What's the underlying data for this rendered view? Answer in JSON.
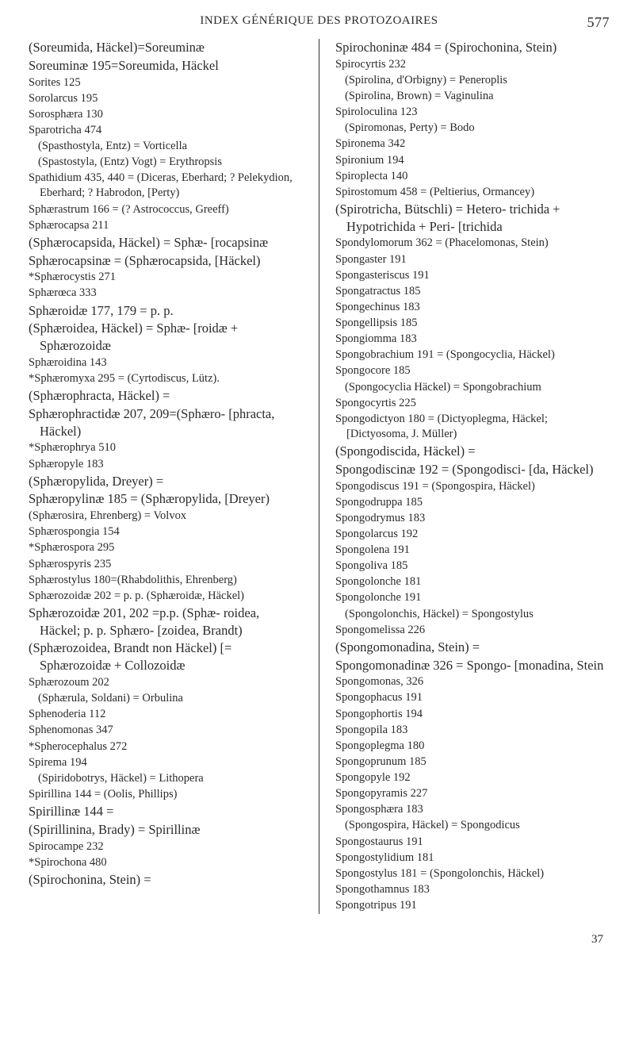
{
  "header": {
    "title": "INDEX GÉNÉRIQUE DES PROTOZOAIRES",
    "page_top": "577",
    "page_bottom": "37"
  },
  "col1": [
    {
      "t": "(Soreumida, Häckel)=Soreuminæ",
      "cls": "big"
    },
    {
      "t": "Soreuminæ 195=Soreumida, Häckel",
      "cls": "big"
    },
    {
      "t": "Sorites 125"
    },
    {
      "t": "Sorolarcus 195"
    },
    {
      "t": "Sorosphæra 130"
    },
    {
      "t": "Sparotricha 474"
    },
    {
      "t": "(Spasthostyla, Entz) = Vorticella",
      "cls": "sub"
    },
    {
      "t": "(Spastostyla, (Entz) Vogt) = Erythropsis",
      "cls": "sub"
    },
    {
      "t": "Spathidium 435, 440 = (Diceras, Eberhard; ? Pelekydion, Eberhard; ? Habrodon, [Perty)"
    },
    {
      "t": "Sphærastrum 166 = (? Astrococcus, Greeff)"
    },
    {
      "t": "Sphærocapsa 211"
    },
    {
      "t": "(Sphærocapsida, Häckel) = Sphæ- [rocapsinæ",
      "cls": "big"
    },
    {
      "t": "Sphærocapsinæ = (Sphærocapsida, [Häckel)",
      "cls": "big"
    },
    {
      "t": "*Sphærocystis 271"
    },
    {
      "t": "Sphærœca 333"
    },
    {
      "t": "Sphæroidæ 177, 179 = p. p.",
      "cls": "big"
    },
    {
      "t": "(Sphæroidea, Häckel) = Sphæ- [roidæ + Sphærozoidæ",
      "cls": "big"
    },
    {
      "t": "Sphæroidina 143"
    },
    {
      "t": "*Sphæromyxa 295 = (Cyrtodiscus, Lütz)."
    },
    {
      "t": "(Sphærophracta, Häckel) =",
      "cls": "big"
    },
    {
      "t": "Sphærophractidæ 207, 209=(Sphæro- [phracta, Häckel)",
      "cls": "big"
    },
    {
      "t": "*Sphærophrya 510"
    },
    {
      "t": "Sphæropyle 183"
    },
    {
      "t": "(Sphæropylida, Dreyer) =",
      "cls": "big"
    },
    {
      "t": "Sphæropylinæ 185 = (Sphæropylida, [Dreyer)",
      "cls": "big"
    },
    {
      "t": "(Sphærosira, Ehrenberg) = Volvox"
    },
    {
      "t": "Sphærospongia 154"
    },
    {
      "t": "*Sphærospora 295"
    },
    {
      "t": "Sphærospyris 235"
    },
    {
      "t": "Sphærostylus 180=(Rhabdolithis, Ehrenberg)"
    },
    {
      "t": "Sphærozoidæ 202 = p. p. (Sphæroidæ, Häckel)"
    },
    {
      "t": "Sphærozoidæ 201, 202 =p.p. (Sphæ- roidea, Häckel; p. p. Sphæro- [zoidea, Brandt)",
      "cls": "big"
    },
    {
      "t": "(Sphærozoidea, Brandt non Häckel) [= Sphærozoidæ + Collozoidæ",
      "cls": "big"
    },
    {
      "t": "Sphærozoum 202"
    },
    {
      "t": "(Sphærula, Soldani) = Orbulina",
      "cls": "sub"
    },
    {
      "t": "Sphenoderia 112"
    },
    {
      "t": "Sphenomonas 347"
    },
    {
      "t": "*Spherocephalus 272"
    },
    {
      "t": "Spirema 194"
    },
    {
      "t": "(Spiridobotrys, Häckel) = Lithopera",
      "cls": "sub"
    },
    {
      "t": "Spirillina 144 = (Oolis, Phillips)"
    },
    {
      "t": "Spirillinæ 144 =",
      "cls": "big"
    },
    {
      "t": "(Spirillinina, Brady) = Spirillinæ",
      "cls": "big"
    },
    {
      "t": "Spirocampe 232"
    },
    {
      "t": "*Spirochona 480"
    },
    {
      "t": "(Spirochonina, Stein) =",
      "cls": "big"
    }
  ],
  "col2": [
    {
      "t": "Spirochoninæ 484 = (Spirochonina, Stein)",
      "cls": "big"
    },
    {
      "t": "Spirocyrtis 232"
    },
    {
      "t": "(Spirolina, d'Orbigny) = Peneroplis",
      "cls": "sub"
    },
    {
      "t": "(Spirolina, Brown) = Vaginulina",
      "cls": "sub"
    },
    {
      "t": "Spiroloculina 123"
    },
    {
      "t": "(Spiromonas, Perty) = Bodo",
      "cls": "sub"
    },
    {
      "t": "Spironema 342"
    },
    {
      "t": "Spironium 194"
    },
    {
      "t": "Spiroplecta 140"
    },
    {
      "t": "Spirostomum 458 = (Peltierius, Ormancey)"
    },
    {
      "t": "(Spirotricha, Bütschli) = Hetero- trichida + Hypotrichida + Peri- [trichida",
      "cls": "big"
    },
    {
      "t": "Spondylomorum 362 = (Phacelomonas, Stein)"
    },
    {
      "t": "Spongaster 191"
    },
    {
      "t": "Spongasteriscus 191"
    },
    {
      "t": "Spongatractus 185"
    },
    {
      "t": "Spongechinus 183"
    },
    {
      "t": "Spongellipsis 185"
    },
    {
      "t": "Spongiomma 183"
    },
    {
      "t": "Spongobrachium 191 = (Spongocyclia, Häckel)"
    },
    {
      "t": "Spongocore 185"
    },
    {
      "t": "(Spongocyclia Häckel) = Spongobrachium",
      "cls": "sub"
    },
    {
      "t": "Spongocyrtis 225"
    },
    {
      "t": "Spongodictyon 180 = (Dictyoplegma, Häckel; [Dictyosoma, J. Müller)"
    },
    {
      "t": "(Spongodiscida, Häckel) =",
      "cls": "big"
    },
    {
      "t": "Spongodiscinæ 192 = (Spongodisci- [da, Häckel)",
      "cls": "big"
    },
    {
      "t": "Spongodiscus 191 = (Spongospira, Häckel)"
    },
    {
      "t": "Spongodruppa 185"
    },
    {
      "t": "Spongodrymus 183"
    },
    {
      "t": "Spongolarcus 192"
    },
    {
      "t": "Spongolena 191"
    },
    {
      "t": "Spongoliva 185"
    },
    {
      "t": "Spongolonche 181"
    },
    {
      "t": "Spongolonche 191"
    },
    {
      "t": "(Spongolonchis, Häckel) = Spongostylus",
      "cls": "sub"
    },
    {
      "t": "Spongomelissa 226"
    },
    {
      "t": "(Spongomonadina, Stein) =",
      "cls": "big"
    },
    {
      "t": "Spongomonadinæ 326 = Spongo- [monadina, Stein",
      "cls": "big"
    },
    {
      "t": "Spongomonas, 326"
    },
    {
      "t": "Spongophacus 191"
    },
    {
      "t": "Spongophortis 194"
    },
    {
      "t": "Spongopila 183"
    },
    {
      "t": "Spongoplegma 180"
    },
    {
      "t": "Spongoprunum 185"
    },
    {
      "t": "Spongopyle 192"
    },
    {
      "t": "Spongopyramis 227"
    },
    {
      "t": "Spongosphæra 183"
    },
    {
      "t": "(Spongospira, Häckel) = Spongodicus",
      "cls": "sub"
    },
    {
      "t": "Spongostaurus 191"
    },
    {
      "t": "Spongostylidium 181"
    },
    {
      "t": "Spongostylus 181 = (Spongolonchis, Häckel)"
    },
    {
      "t": "Spongothamnus 183"
    },
    {
      "t": "Spongotripus 191"
    }
  ]
}
